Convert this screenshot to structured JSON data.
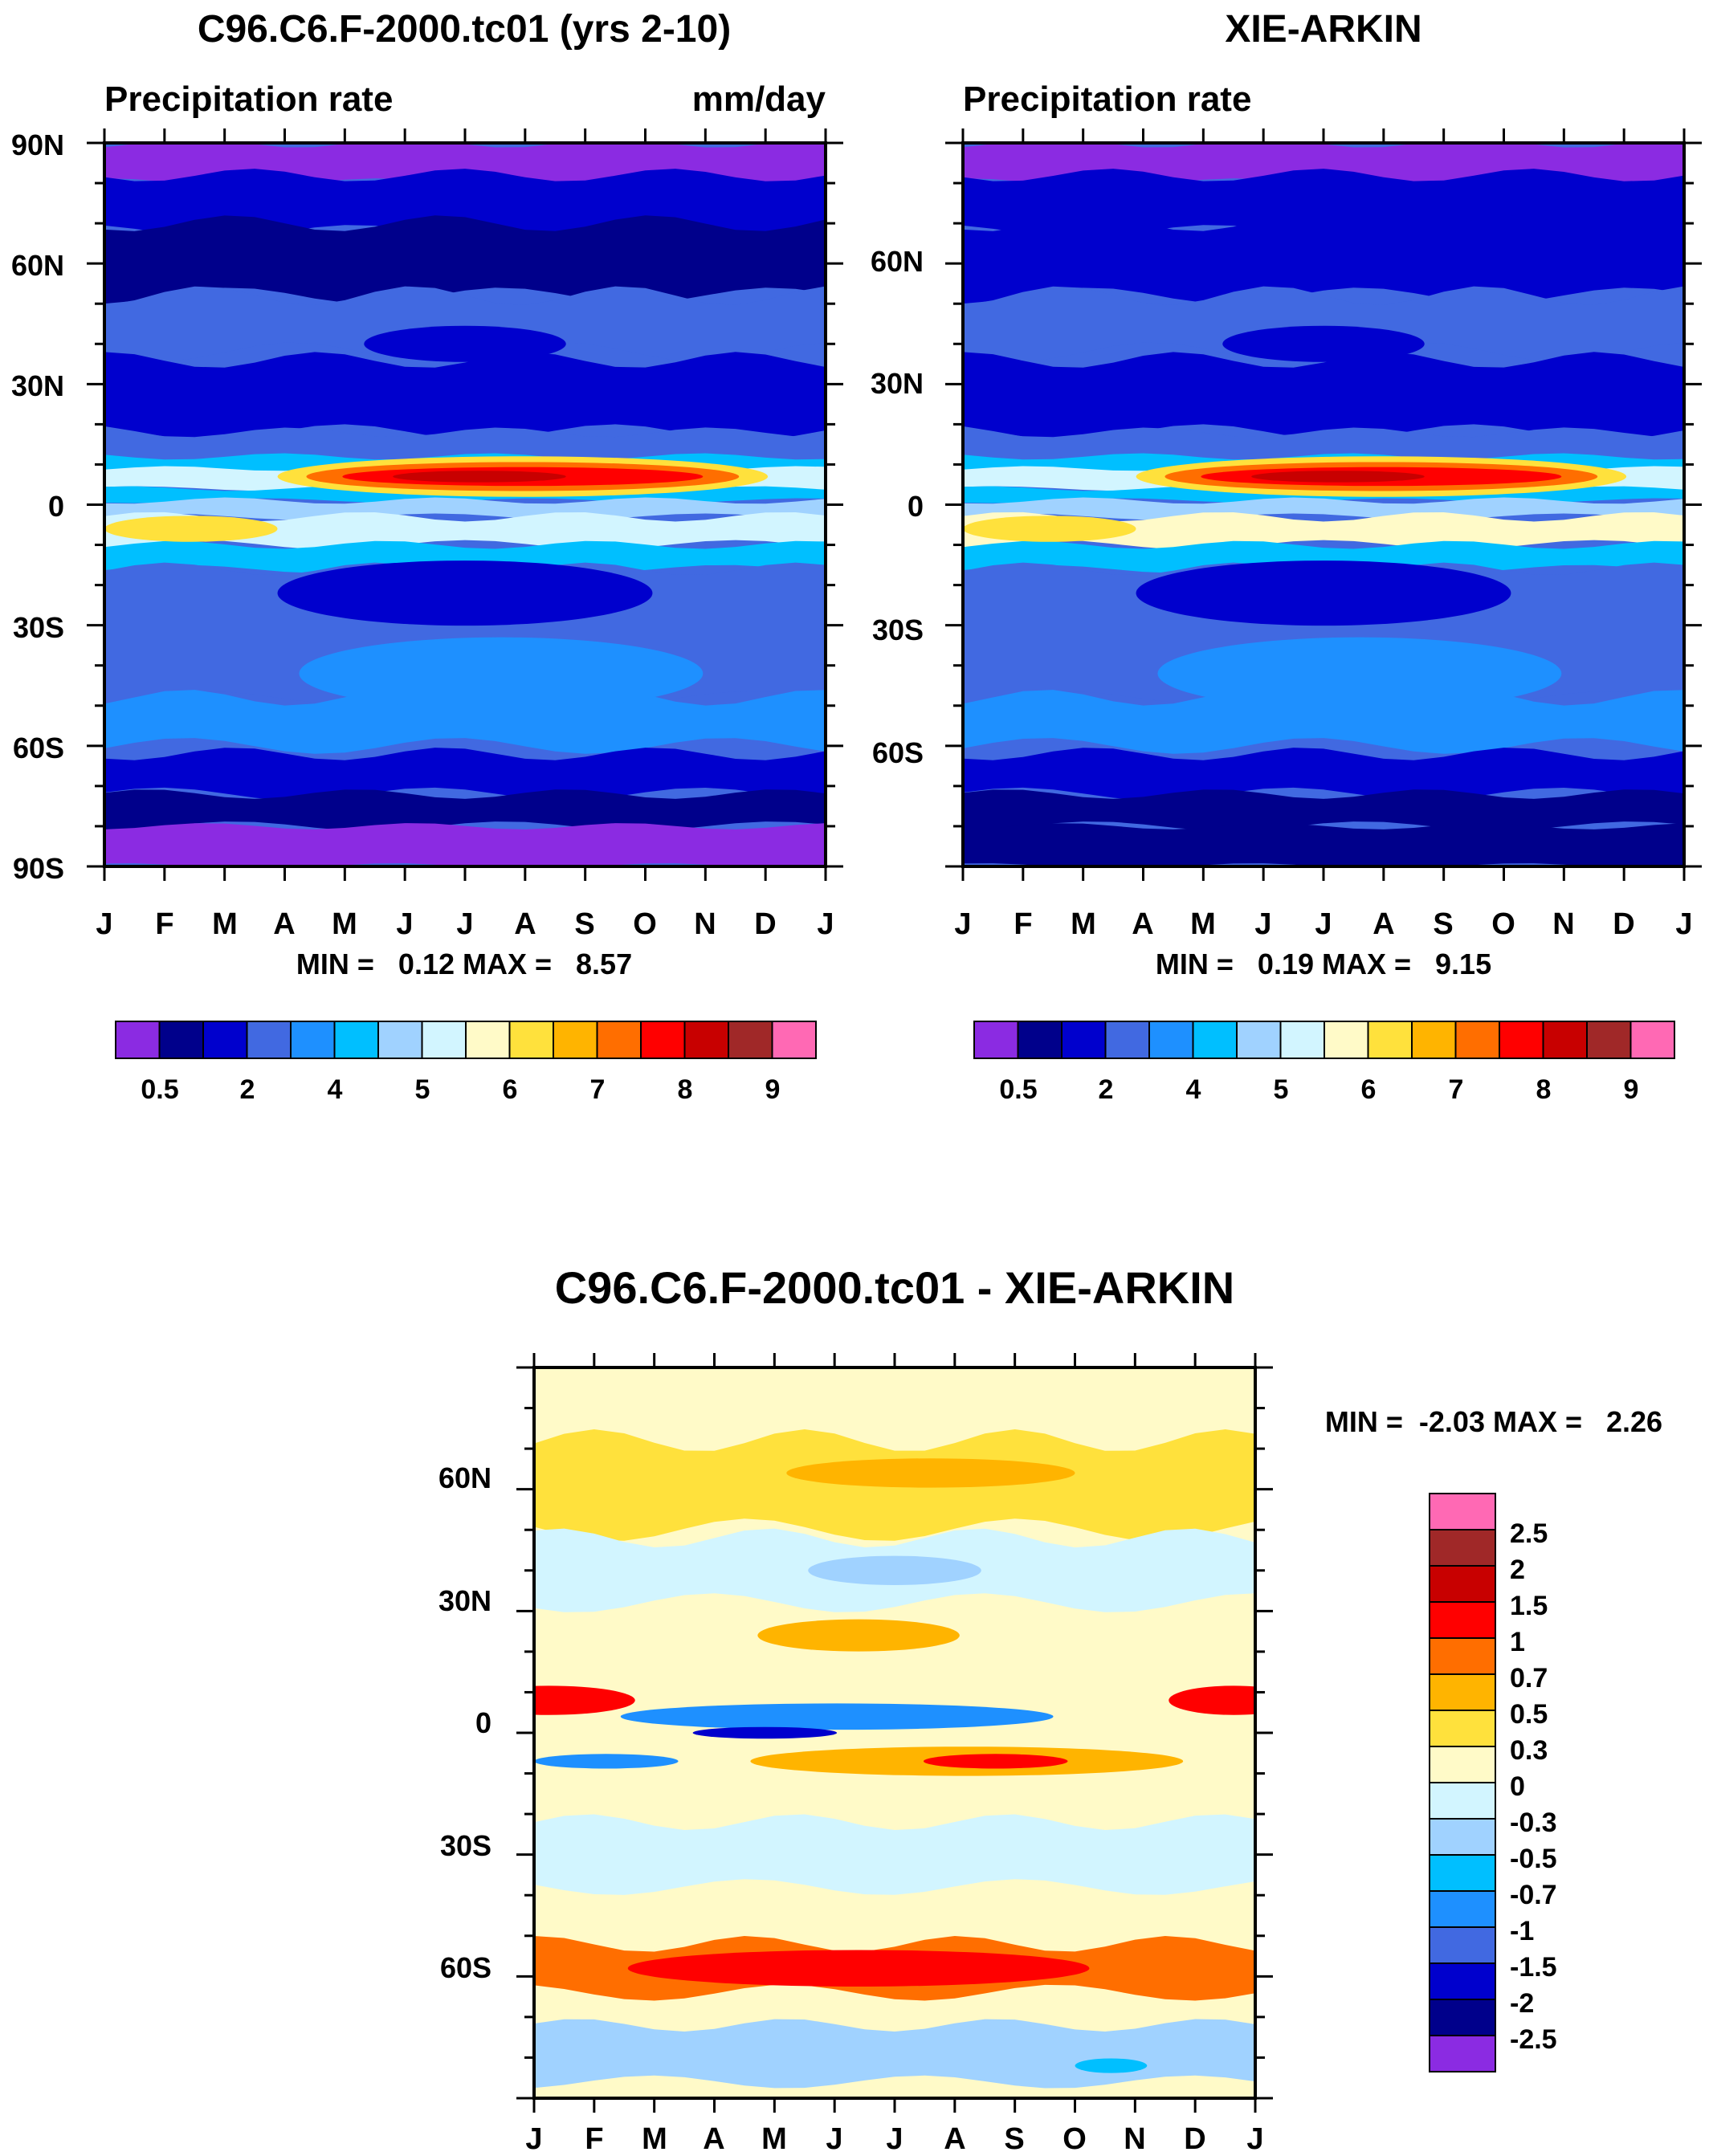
{
  "colors": {
    "abs_levels": [
      "#8b2be2",
      "#00008b",
      "#0000cd",
      "#4169e1",
      "#1e90ff",
      "#00bfff",
      "#a0d2ff",
      "#d2f5ff",
      "#fffac8",
      "#ffe13c",
      "#ffb400",
      "#ff6e00",
      "#ff0000",
      "#c80000",
      "#a02828",
      "#ff69b4"
    ],
    "diff_levels": [
      "#8b2be2",
      "#00008b",
      "#0000cd",
      "#4169e1",
      "#1e90ff",
      "#00bfff",
      "#a0d2ff",
      "#d2f5ff",
      "#fffac8",
      "#ffe13c",
      "#ffb400",
      "#ff6e00",
      "#ff0000",
      "#c80000",
      "#a02828",
      "#ff69b4"
    ]
  },
  "chart_data": [
    {
      "type": "heatmap",
      "id": "model",
      "title": "C96.C6.F-2000.tc01 (yrs 2-10)",
      "left_label": "Precipitation rate",
      "right_label": "mm/day",
      "x_ticks": [
        "J",
        "F",
        "M",
        "A",
        "M",
        "J",
        "J",
        "A",
        "S",
        "O",
        "N",
        "D",
        "J"
      ],
      "y_ticks": [
        "90N",
        "60N",
        "30N",
        "0",
        "30S",
        "60S",
        "90S"
      ],
      "ylim": [
        -90,
        90
      ],
      "stats_text": "MIN =   0.12 MAX =   8.57",
      "colorbar_labels": [
        "0.5",
        "2",
        "4",
        "5",
        "6",
        "7",
        "8",
        "9"
      ],
      "min": 0.12,
      "max": 8.57
    },
    {
      "type": "heatmap",
      "id": "obs",
      "title": "XIE-ARKIN",
      "left_label": "Precipitation rate",
      "right_label": "",
      "x_ticks": [
        "J",
        "F",
        "M",
        "A",
        "M",
        "J",
        "J",
        "A",
        "S",
        "O",
        "N",
        "D",
        "J"
      ],
      "y_ticks": [
        "60N",
        "30N",
        "0",
        "30S",
        "60S"
      ],
      "ylim": [
        -90,
        90
      ],
      "stats_text": "MIN =   0.19 MAX =   9.15",
      "colorbar_labels": [
        "0.5",
        "2",
        "4",
        "5",
        "6",
        "7",
        "8",
        "9"
      ],
      "min": 0.19,
      "max": 9.15
    },
    {
      "type": "heatmap",
      "id": "diff",
      "title": "C96.C6.F-2000.tc01 - XIE-ARKIN",
      "x_ticks": [
        "J",
        "F",
        "M",
        "A",
        "M",
        "J",
        "J",
        "A",
        "S",
        "O",
        "N",
        "D",
        "J"
      ],
      "y_ticks": [
        "60N",
        "30N",
        "0",
        "30S",
        "60S"
      ],
      "ylim": [
        -90,
        90
      ],
      "stats_text": "MIN =  -2.03 MAX =   2.26",
      "colorbar_labels": [
        "2.5",
        "2",
        "1.5",
        "1",
        "0.7",
        "0.5",
        "0.3",
        "0",
        "-0.3",
        "-0.5",
        "-0.7",
        "-1",
        "-1.5",
        "-2",
        "-2.5"
      ],
      "min": -2.03,
      "max": 2.26
    }
  ]
}
